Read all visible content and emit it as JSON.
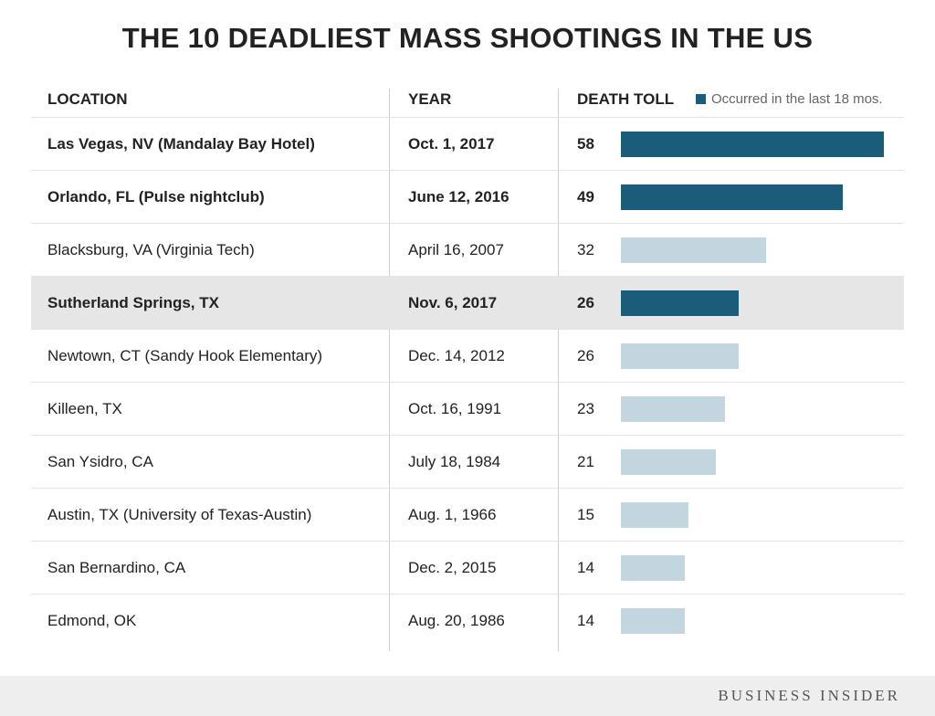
{
  "chart_data": {
    "type": "table",
    "title": "THE 10 DEADLIEST MASS SHOOTINGS IN THE US",
    "columns": [
      "LOCATION",
      "YEAR",
      "DEATH TOLL"
    ],
    "legend": {
      "label": "Occurred in the last 18 mos.",
      "color": "#1a5c7a"
    },
    "colors": {
      "recent": "#1a5c7a",
      "older": "#c3d5de",
      "highlight_row": "#e6e6e6"
    },
    "max_value": 58,
    "rows": [
      {
        "location": "Las Vegas, NV (Mandalay Bay Hotel)",
        "year": "Oct. 1, 2017",
        "toll": 58,
        "recent": true,
        "highlight": false
      },
      {
        "location": "Orlando, FL (Pulse nightclub)",
        "year": "June 12, 2016",
        "toll": 49,
        "recent": true,
        "highlight": false
      },
      {
        "location": "Blacksburg, VA (Virginia Tech)",
        "year": "April 16, 2007",
        "toll": 32,
        "recent": false,
        "highlight": false
      },
      {
        "location": "Sutherland Springs, TX",
        "year": "Nov. 6, 2017",
        "toll": 26,
        "recent": true,
        "highlight": true
      },
      {
        "location": "Newtown, CT (Sandy Hook Elementary)",
        "year": "Dec. 14, 2012",
        "toll": 26,
        "recent": false,
        "highlight": false
      },
      {
        "location": "Killeen, TX",
        "year": "Oct. 16, 1991",
        "toll": 23,
        "recent": false,
        "highlight": false
      },
      {
        "location": "San Ysidro, CA",
        "year": "July 18, 1984",
        "toll": 21,
        "recent": false,
        "highlight": false
      },
      {
        "location": "Austin, TX (University of Texas-Austin)",
        "year": "Aug. 1, 1966",
        "toll": 15,
        "recent": false,
        "highlight": false
      },
      {
        "location": "San Bernardino, CA",
        "year": "Dec. 2, 2015",
        "toll": 14,
        "recent": false,
        "highlight": false
      },
      {
        "location": "Edmond, OK",
        "year": "Aug. 20, 1986",
        "toll": 14,
        "recent": false,
        "highlight": false
      }
    ]
  },
  "footer": {
    "brand": "BUSINESS INSIDER"
  }
}
